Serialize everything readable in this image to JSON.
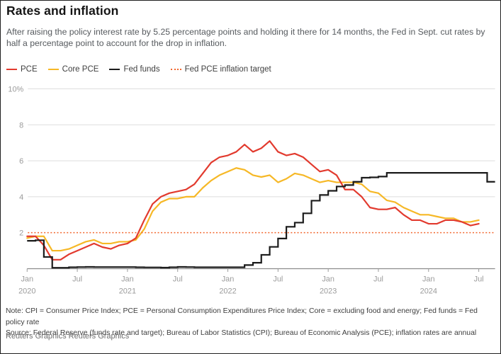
{
  "header": {
    "title": "Rates and inflation",
    "subtitle_lines": [
      "After raising the policy interest rate by 5.25 percentage points and holding it there for 14 months, the Fed in Sept. cut rates by",
      "half a percentage point to account for the drop in inflation."
    ]
  },
  "legend": {
    "items": [
      {
        "label": "PCE",
        "color": "#e23a2e",
        "style": "solid"
      },
      {
        "label": "Core PCE",
        "color": "#f6b826",
        "style": "solid"
      },
      {
        "label": "Fed funds",
        "color": "#1b1b1b",
        "style": "solid"
      },
      {
        "label": "Fed PCE inflation target",
        "color": "#f2662d",
        "style": "dotted"
      }
    ]
  },
  "chart_data": {
    "type": "line",
    "title": "Rates and inflation",
    "x_unit": "month",
    "x_range": [
      "Jan 2020",
      "Sep 2024"
    ],
    "ylabel": "percent",
    "ylim": [
      0,
      10
    ],
    "grid": true,
    "legend_position": "top-left",
    "yticks": [
      {
        "value": 2,
        "label": "2"
      },
      {
        "value": 4,
        "label": "4"
      },
      {
        "value": 6,
        "label": "6"
      },
      {
        "value": 8,
        "label": "8"
      },
      {
        "value": 10,
        "label": "10%"
      }
    ],
    "xticks": [
      {
        "m": 0,
        "label": "Jan",
        "year": "2020"
      },
      {
        "m": 6,
        "label": "Jul"
      },
      {
        "m": 12,
        "label": "Jan",
        "year": "2021"
      },
      {
        "m": 18,
        "label": "Jul"
      },
      {
        "m": 24,
        "label": "Jan",
        "year": "2022"
      },
      {
        "m": 30,
        "label": "Jul"
      },
      {
        "m": 36,
        "label": "Jan",
        "year": "2023"
      },
      {
        "m": 42,
        "label": "Jul"
      },
      {
        "m": 48,
        "label": "Jan",
        "year": "2024"
      },
      {
        "m": 54,
        "label": "Jul"
      }
    ],
    "target_line": {
      "name": "Fed PCE inflation target",
      "value": 2,
      "color": "#f2662d",
      "style": "dotted"
    },
    "series": [
      {
        "id": "pce",
        "name": "PCE",
        "color": "#e23a2e",
        "type": "line",
        "start": "2020-01",
        "values": [
          1.8,
          1.8,
          1.3,
          0.5,
          0.5,
          0.8,
          1.0,
          1.2,
          1.4,
          1.2,
          1.1,
          1.3,
          1.4,
          1.7,
          2.7,
          3.6,
          4.0,
          4.2,
          4.3,
          4.4,
          4.7,
          5.3,
          5.9,
          6.2,
          6.3,
          6.5,
          6.9,
          6.5,
          6.7,
          7.1,
          6.5,
          6.3,
          6.4,
          6.2,
          5.8,
          5.4,
          5.5,
          5.2,
          4.4,
          4.4,
          4.0,
          3.4,
          3.3,
          3.3,
          3.4,
          3.0,
          2.7,
          2.7,
          2.5,
          2.5,
          2.7,
          2.7,
          2.6,
          2.4,
          2.5
        ]
      },
      {
        "id": "core-pce",
        "name": "Core PCE",
        "color": "#f6b826",
        "type": "line",
        "start": "2020-01",
        "values": [
          1.7,
          1.8,
          1.8,
          1.0,
          1.0,
          1.1,
          1.3,
          1.5,
          1.6,
          1.4,
          1.4,
          1.5,
          1.5,
          1.6,
          2.2,
          3.2,
          3.7,
          3.9,
          3.9,
          4.0,
          4.0,
          4.5,
          4.9,
          5.2,
          5.4,
          5.6,
          5.5,
          5.2,
          5.1,
          5.2,
          4.8,
          5.0,
          5.3,
          5.2,
          5.0,
          4.8,
          4.9,
          4.8,
          4.8,
          4.8,
          4.7,
          4.3,
          4.2,
          3.8,
          3.7,
          3.4,
          3.2,
          3.0,
          3.0,
          2.9,
          2.8,
          2.8,
          2.6,
          2.6,
          2.7
        ]
      },
      {
        "id": "fed-funds",
        "name": "Fed funds",
        "color": "#1b1b1b",
        "type": "step",
        "start": "2020-01",
        "values": [
          1.55,
          1.58,
          0.65,
          0.05,
          0.05,
          0.08,
          0.09,
          0.1,
          0.09,
          0.09,
          0.09,
          0.09,
          0.09,
          0.08,
          0.07,
          0.07,
          0.06,
          0.08,
          0.1,
          0.09,
          0.08,
          0.08,
          0.08,
          0.08,
          0.08,
          0.08,
          0.2,
          0.33,
          0.77,
          1.21,
          1.68,
          2.33,
          2.56,
          3.08,
          3.78,
          4.1,
          4.33,
          4.57,
          4.65,
          4.83,
          5.06,
          5.08,
          5.12,
          5.33,
          5.33,
          5.33,
          5.33,
          5.33,
          5.33,
          5.33,
          5.33,
          5.33,
          5.33,
          5.33,
          5.33,
          4.83
        ]
      }
    ]
  },
  "footer": {
    "note": "Note: CPI = Consumer Price Index; PCE = Personal Consumption Expenditures Price Index; Core = excluding food and energy; Fed funds = Fed policy rate",
    "source": "Source: Federal Reserve (funds rate and target); Bureau of Labor Statistics (CPI); Bureau of Economic Analysis (PCE); inflation rates are annual",
    "credit": "Reuters Graphics Reuters Graphics"
  }
}
